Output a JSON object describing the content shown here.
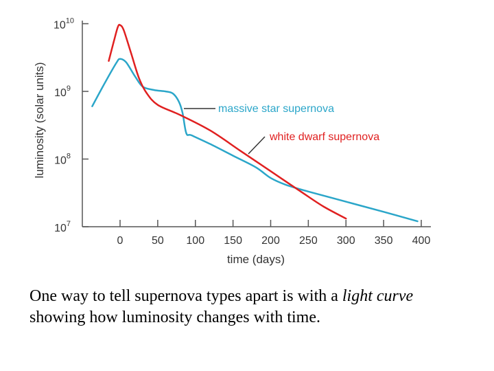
{
  "chart_data": {
    "type": "line",
    "title": "",
    "xlabel": "time (days)",
    "ylabel": "luminosity (solar units)",
    "x_ticks": [
      0,
      50,
      100,
      150,
      200,
      250,
      300,
      350,
      400
    ],
    "y_ticks": [
      {
        "value": 10000000,
        "base": "10",
        "exp": "7"
      },
      {
        "value": 100000000,
        "base": "10",
        "exp": "8"
      },
      {
        "value": 1000000000,
        "base": "10",
        "exp": "9"
      },
      {
        "value": 10000000000,
        "base": "10",
        "exp": "10"
      }
    ],
    "xlim": [
      -45,
      415
    ],
    "ylim_log10": [
      7,
      10
    ],
    "series": [
      {
        "name": "massive star supernova",
        "color": "#2ba6c9",
        "x": [
          -37,
          -20,
          -5,
          0,
          8,
          20,
          30,
          45,
          60,
          70,
          78,
          83,
          88,
          95,
          120,
          150,
          180,
          200,
          220,
          250,
          300,
          350,
          395
        ],
        "log_y": [
          8.78,
          9.13,
          9.42,
          9.48,
          9.43,
          9.22,
          9.07,
          9.02,
          9.0,
          8.97,
          8.85,
          8.68,
          8.38,
          8.35,
          8.22,
          8.05,
          7.88,
          7.72,
          7.62,
          7.52,
          7.37,
          7.22,
          7.08
        ]
      },
      {
        "name": "white dwarf supernova",
        "color": "#e02020",
        "x": [
          -15,
          -8,
          -3,
          0,
          5,
          15,
          25,
          35,
          50,
          80,
          120,
          160,
          200,
          240,
          270,
          300
        ],
        "log_y": [
          9.45,
          9.75,
          9.95,
          9.98,
          9.9,
          9.55,
          9.2,
          8.98,
          8.8,
          8.65,
          8.42,
          8.12,
          7.82,
          7.52,
          7.3,
          7.12
        ]
      }
    ],
    "annotations": [
      {
        "text": "massive star supernova",
        "color": "#2ba6c9",
        "series": "massive star supernova"
      },
      {
        "text": "white dwarf supernova",
        "color": "#e02020",
        "series": "white dwarf supernova"
      }
    ]
  },
  "caption": {
    "part1": "One way to tell supernova types apart is with a ",
    "emphasis": "light curve",
    "part2": "  showing how luminosity changes with time."
  }
}
